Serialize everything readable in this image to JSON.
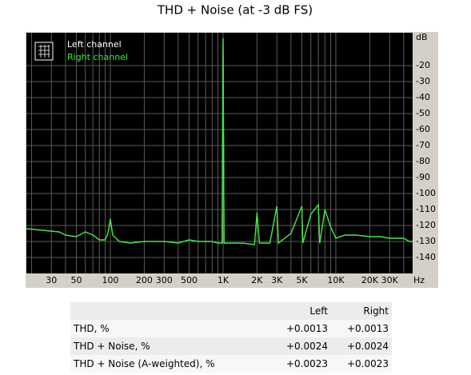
{
  "chart_data": {
    "type": "line",
    "title": "THD + Noise (at -3 dB FS)",
    "x_unit": "Hz",
    "y_unit": "dB",
    "xscale": "log",
    "grid": true,
    "xlim": [
      18,
      48000
    ],
    "ylim": [
      -150,
      0
    ],
    "xticks": [
      30,
      50,
      100,
      200,
      300,
      500,
      {
        "value": 1000,
        "label": "1K"
      },
      {
        "value": 2000,
        "label": "2K"
      },
      {
        "value": 3000,
        "label": "3K"
      },
      {
        "value": 5000,
        "label": "5K"
      },
      {
        "value": 10000,
        "label": "10K"
      },
      {
        "value": 20000,
        "label": "20K"
      },
      {
        "value": 30000,
        "label": "30K"
      }
    ],
    "x_minor_ticks": [
      20,
      40,
      60,
      70,
      80,
      90,
      400,
      600,
      700,
      800,
      900,
      4000,
      6000,
      7000,
      8000,
      9000,
      40000
    ],
    "yticks": [
      -20,
      -30,
      -40,
      -50,
      -60,
      -70,
      -80,
      -90,
      -100,
      -110,
      -120,
      -130,
      -140
    ],
    "x": [
      18,
      25,
      35,
      40,
      50,
      60,
      70,
      80,
      90,
      95,
      100,
      105,
      120,
      150,
      200,
      300,
      400,
      500,
      600,
      800,
      900,
      980,
      1000,
      1020,
      1500,
      1900,
      2000,
      2100,
      2600,
      3000,
      3100,
      4000,
      5000,
      5100,
      6000,
      7000,
      7200,
      8000,
      9000,
      10000,
      12000,
      15000,
      20000,
      25000,
      30000,
      40000,
      45000,
      48000
    ],
    "series": [
      {
        "name": "Left channel",
        "color": "#ffffff",
        "values": [
          -122,
          -123,
          -124,
          -126,
          -127,
          -124,
          -126,
          -129,
          -129,
          -125,
          -116,
          -126,
          -130,
          -131,
          -130,
          -130,
          -131,
          -129,
          -130,
          -130,
          -131,
          -131,
          -3,
          -131,
          -131,
          -132,
          -112,
          -131,
          -131,
          -108,
          -131,
          -125,
          -108,
          -131,
          -113,
          -107,
          -131,
          -110,
          -121,
          -128,
          -126,
          -126,
          -127,
          -127,
          -128,
          -128,
          -130,
          -130
        ]
      },
      {
        "name": "Right channel",
        "color": "#33ee33",
        "values": [
          -122,
          -123,
          -124,
          -126,
          -127,
          -124,
          -126,
          -129,
          -129,
          -125,
          -116,
          -126,
          -130,
          -131,
          -130,
          -130,
          -131,
          -129,
          -130,
          -130,
          -131,
          -131,
          -3,
          -131,
          -131,
          -132,
          -112,
          -131,
          -131,
          -108,
          -131,
          -125,
          -108,
          -131,
          -113,
          -107,
          -131,
          -110,
          -121,
          -128,
          -126,
          -126,
          -127,
          -127,
          -128,
          -128,
          -130,
          -130
        ]
      }
    ]
  },
  "table": {
    "header": [
      "Left",
      "Right"
    ],
    "rows": [
      [
        "THD, %",
        "+0.0013",
        "+0.0013"
      ],
      [
        "THD + Noise, %",
        "+0.0024",
        "+0.0024"
      ],
      [
        "THD + Noise (A-weighted), %",
        "+0.0023",
        "+0.0023"
      ]
    ]
  }
}
